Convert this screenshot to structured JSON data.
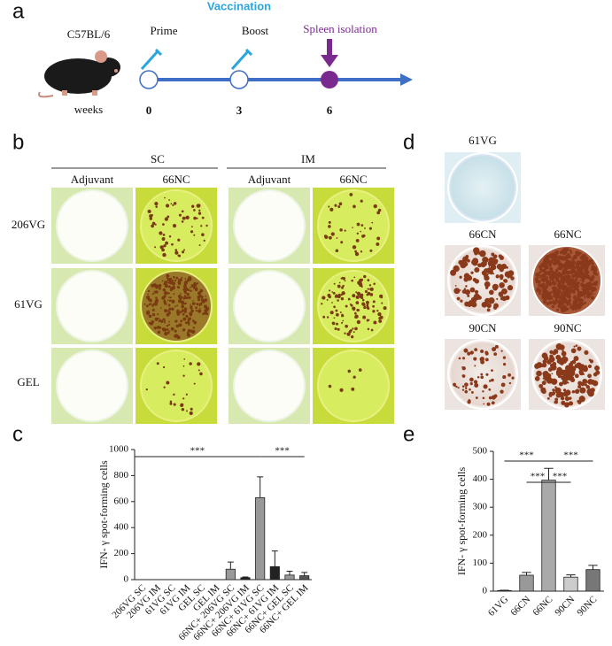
{
  "figure": {
    "panel_a": {
      "letter": "a",
      "title": "Vaccination",
      "strain": "C57BL/6",
      "steps": [
        "Prime",
        "Boost",
        "Spleen isolation"
      ],
      "axis_label": "weeks",
      "weeks": [
        "0",
        "3",
        "6"
      ]
    },
    "panel_b": {
      "letter": "b",
      "groups": [
        "SC",
        "IM"
      ],
      "columns": [
        "Adjuvant",
        "66NC",
        "Adjuvant",
        "66NC"
      ],
      "rows": [
        "206VG",
        "61VG",
        "GEL"
      ]
    },
    "panel_d": {
      "letter": "d",
      "wells": [
        "61VG",
        "66CN",
        "66NC",
        "90CN",
        "90NC"
      ]
    }
  },
  "chart_data": [
    {
      "type": "bar",
      "panel_label": "c",
      "y_label": "IFN- γ spot-forming cells",
      "categories": [
        "206VG SC",
        "206VG IM",
        "61VG SC",
        "61VG IM",
        "GEL SC",
        "GEL IM",
        "66NC+ 206VG SC",
        "66NC+ 206VG IM",
        "66NC+ 61VG SC",
        "66NC+ 61VG IM",
        "66NC+ GEL SC",
        "66NC+ GEL IM"
      ],
      "values": [
        0,
        0,
        0,
        0,
        0,
        0,
        80,
        15,
        630,
        100,
        35,
        30
      ],
      "errors": [
        0,
        0,
        0,
        0,
        0,
        0,
        55,
        5,
        160,
        120,
        30,
        25
      ],
      "colors": [
        "#999999",
        "#222222",
        "#999999",
        "#222222",
        "#999999",
        "#222222",
        "#999999",
        "#222222",
        "#999999",
        "#222222",
        "#999999",
        "#555555"
      ],
      "ylim": [
        0,
        1000
      ],
      "yticks": [
        0,
        200,
        400,
        600,
        800,
        1000
      ],
      "annotations": [
        {
          "label": "***",
          "from": "206VG SC",
          "to": "66NC+ 61VG SC"
        },
        {
          "label": "***",
          "from": "66NC+ 61VG SC",
          "to": "66NC+ GEL IM"
        }
      ]
    },
    {
      "type": "bar",
      "panel_label": "e",
      "y_label": "IFN- γ spot-forming cells",
      "categories": [
        "61VG",
        "66CN",
        "66NC",
        "90CN",
        "90NC"
      ],
      "values": [
        2,
        57,
        397,
        50,
        77
      ],
      "errors": [
        1,
        10,
        42,
        8,
        15
      ],
      "colors": [
        "#888888",
        "#999999",
        "#aaaaaa",
        "#cccccc",
        "#777777"
      ],
      "ylim": [
        0,
        500
      ],
      "yticks": [
        0,
        100,
        200,
        300,
        400,
        500
      ],
      "annotations": [
        {
          "label": "***",
          "from": "61VG",
          "to": "66NC"
        },
        {
          "label": "***",
          "from": "66CN",
          "to": "66NC"
        },
        {
          "label": "***",
          "from": "66NC",
          "to": "90CN"
        },
        {
          "label": "***",
          "from": "66NC",
          "to": "90NC"
        }
      ]
    }
  ]
}
